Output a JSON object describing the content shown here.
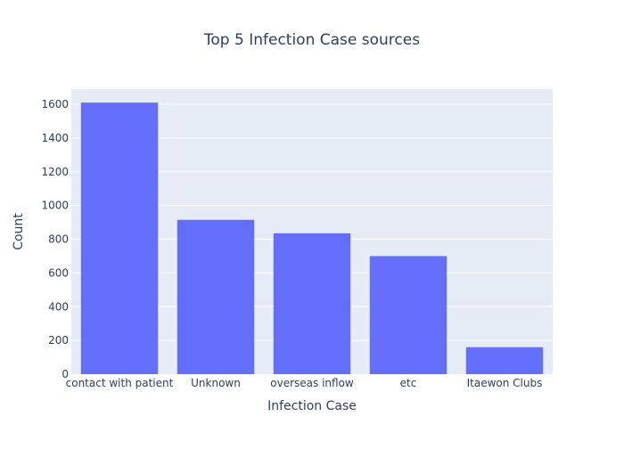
{
  "chart_data": {
    "type": "bar",
    "title": "Top 5 Infection Case sources",
    "xlabel": "Infection Case",
    "ylabel": "Count",
    "categories": [
      "contact with patient",
      "Unknown",
      "overseas inflow",
      "etc",
      "Itaewon Clubs"
    ],
    "values": [
      1610,
      915,
      835,
      700,
      160
    ],
    "ylim": [
      0,
      1690
    ],
    "yticks": [
      0,
      200,
      400,
      600,
      800,
      1000,
      1200,
      1400,
      1600
    ],
    "grid": true,
    "legend": "none"
  },
  "colors": {
    "bar": "#636efa",
    "plot_background": "#e5ecf6",
    "gridline": "#ffffff",
    "text": "#2a3f5f",
    "tick_text": "#2a3f5f"
  }
}
